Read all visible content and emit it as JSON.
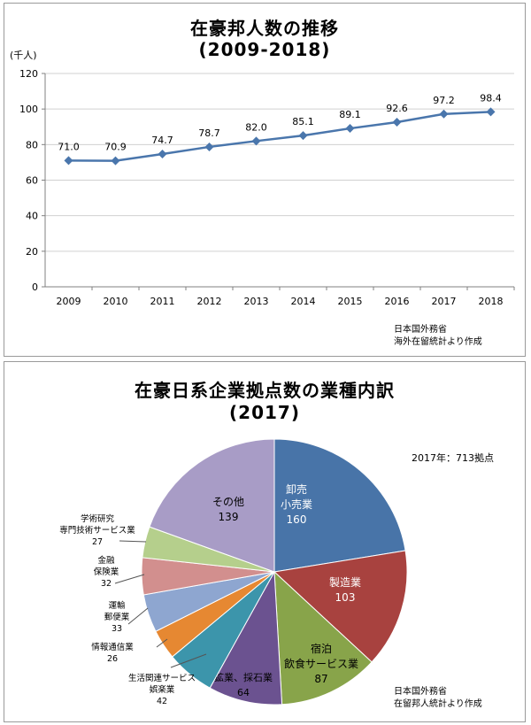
{
  "line_panel": {
    "title_line1": "在豪邦人数の推移",
    "title_line2": "(2009-2018)",
    "unit": "(千人)",
    "source_line1": "日本国外務省",
    "source_line2": "海外在留統計より作成"
  },
  "pie_panel": {
    "title_line1": "在豪日系企業拠点数の業種内訳",
    "title_line2": "(2017)",
    "total_note": "2017年：713拠点",
    "source_line1": "日本国外務省",
    "source_line2": "在留邦人統計より作成"
  },
  "chart_data": [
    {
      "type": "line",
      "title": "在豪邦人数の推移",
      "subtitle": "(2009-2018)",
      "ylabel": "(千人)",
      "x": [
        "2009",
        "2010",
        "2011",
        "2012",
        "2013",
        "2014",
        "2015",
        "2016",
        "2017",
        "2018"
      ],
      "series": [
        {
          "values": [
            71.0,
            70.9,
            74.7,
            78.7,
            82.0,
            85.1,
            89.1,
            92.6,
            97.2,
            98.4
          ],
          "labels": [
            "71.0",
            "70.9",
            "74.7",
            "78.7",
            "82.0",
            "85.1",
            "89.1",
            "92.6",
            "97.2",
            "98.4"
          ],
          "color": "#4a76ac"
        }
      ],
      "ylim": [
        0,
        120
      ],
      "yticks": [
        0,
        20,
        40,
        60,
        80,
        100,
        120
      ],
      "grid": true
    },
    {
      "type": "pie",
      "title": "在豪日系企業拠点数の業種内訳",
      "subtitle": "(2017)",
      "total": 713,
      "slices": [
        {
          "label": "卸売\n小売業",
          "value": 160,
          "color": "#4874a8"
        },
        {
          "label": "製造業",
          "value": 103,
          "color": "#a8423f"
        },
        {
          "label": "宿泊\n飲食サービス業",
          "value": 87,
          "color": "#88a44a"
        },
        {
          "label": "鉱業、採石業",
          "value": 64,
          "color": "#6b5290"
        },
        {
          "label": "生活関連サービス\n娯楽業",
          "value": 42,
          "color": "#3c95ab"
        },
        {
          "label": "情報通信業",
          "value": 26,
          "color": "#e68832"
        },
        {
          "label": "運輸\n郵便業",
          "value": 33,
          "color": "#8ea6d0"
        },
        {
          "label": "金融\n保険業",
          "value": 32,
          "color": "#d28f8e"
        },
        {
          "label": "学術研究\n専門技術サービス業",
          "value": 27,
          "color": "#b5cf8c"
        },
        {
          "label": "その他",
          "value": 139,
          "color": "#a89cc6"
        }
      ]
    }
  ]
}
